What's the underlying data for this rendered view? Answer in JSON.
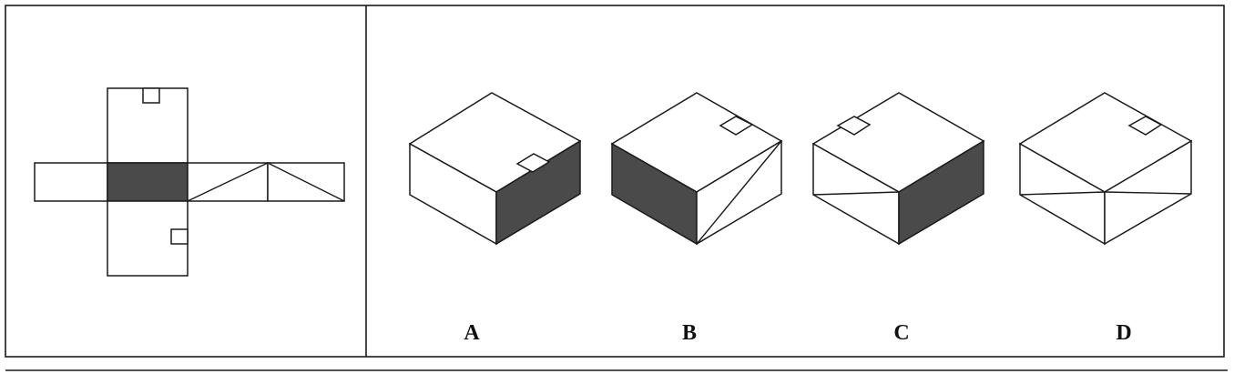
{
  "colors": {
    "ink": "#1a1a1a",
    "shaded_face": "#4a4a4a",
    "paper": "#ffffff"
  },
  "net": {
    "shaded_face_color": "#4a4a4a"
  },
  "options": [
    {
      "label": "A"
    },
    {
      "label": "B"
    },
    {
      "label": "C"
    },
    {
      "label": "D"
    }
  ]
}
